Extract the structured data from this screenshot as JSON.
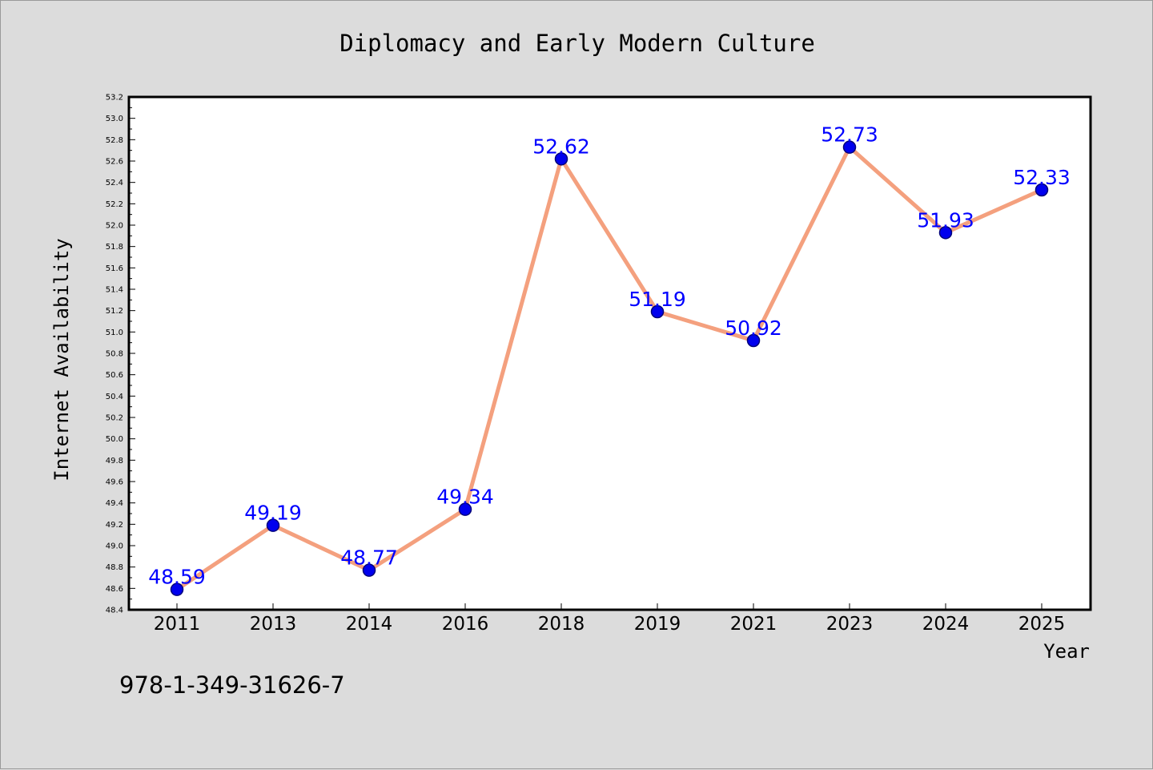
{
  "chart_data": {
    "type": "line",
    "title": "Diplomacy and Early Modern Culture",
    "xlabel": "Year",
    "ylabel": "Internet Availability",
    "categories": [
      "2011",
      "2013",
      "2014",
      "2016",
      "2018",
      "2019",
      "2021",
      "2023",
      "2024",
      "2025"
    ],
    "series": [
      {
        "values": [
          48.59,
          49.19,
          48.77,
          49.34,
          52.62,
          51.19,
          50.92,
          52.73,
          51.93,
          52.33
        ]
      }
    ],
    "data_labels": [
      "48.59",
      "49.19",
      "48.77",
      "49.34",
      "52.62",
      "51.19",
      "50.92",
      "52.73",
      "51.93",
      "52.33"
    ],
    "ylim": [
      48.4,
      53.2
    ],
    "yticks": [
      "48.4",
      "48.6",
      "48.8",
      "49.0",
      "49.2",
      "49.4",
      "49.6",
      "49.8",
      "50.0",
      "50.2",
      "50.4",
      "50.6",
      "50.8",
      "51.0",
      "51.2",
      "51.4",
      "51.6",
      "51.8",
      "52.0",
      "52.2",
      "52.4",
      "52.6",
      "52.8",
      "53.0",
      "53.2"
    ],
    "grid": false,
    "legend": "none",
    "colors": {
      "line": "#f4a07e",
      "marker": "#0000ee",
      "marker_edge": "#00007a",
      "label": "#0000ff",
      "background": "#dcdcdc",
      "plot_area": "#ffffff"
    }
  },
  "footer": {
    "isbn": "978-1-349-31626-7"
  }
}
